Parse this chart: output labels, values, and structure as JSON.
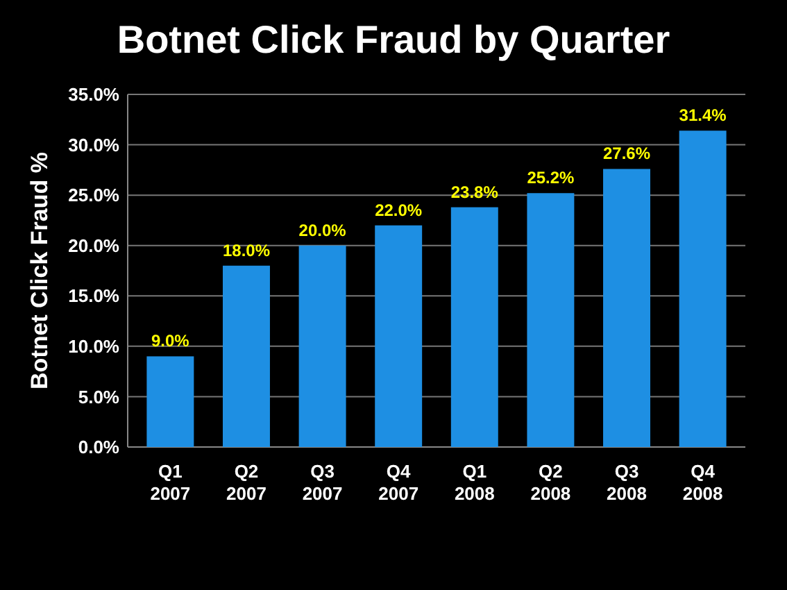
{
  "chart_data": {
    "type": "bar",
    "title": "Botnet Click Fraud by Quarter",
    "ylabel": "Botnet Click Fraud %",
    "categories": [
      "Q1 2007",
      "Q2 2007",
      "Q3 2007",
      "Q4 2007",
      "Q1 2008",
      "Q2 2008",
      "Q3 2008",
      "Q4 2008"
    ],
    "values": [
      9.0,
      18.0,
      20.0,
      22.0,
      23.8,
      25.2,
      27.6,
      31.4
    ],
    "value_labels": [
      "9.0%",
      "18.0%",
      "20.0%",
      "22.0%",
      "23.8%",
      "25.2%",
      "27.6%",
      "31.4%"
    ],
    "color": "#1e8fe3",
    "ylim": [
      0,
      35
    ],
    "yticks": [
      {
        "value": 0,
        "label": "0.0%"
      },
      {
        "value": 5,
        "label": "5.0%"
      },
      {
        "value": 10,
        "label": "10.0%"
      },
      {
        "value": 15,
        "label": "15.0%"
      },
      {
        "value": 20,
        "label": "20.0%"
      },
      {
        "value": 25,
        "label": "25.0%"
      },
      {
        "value": 30,
        "label": "30.0%"
      },
      {
        "value": 35,
        "label": "35.0%"
      }
    ],
    "grid": "y"
  }
}
